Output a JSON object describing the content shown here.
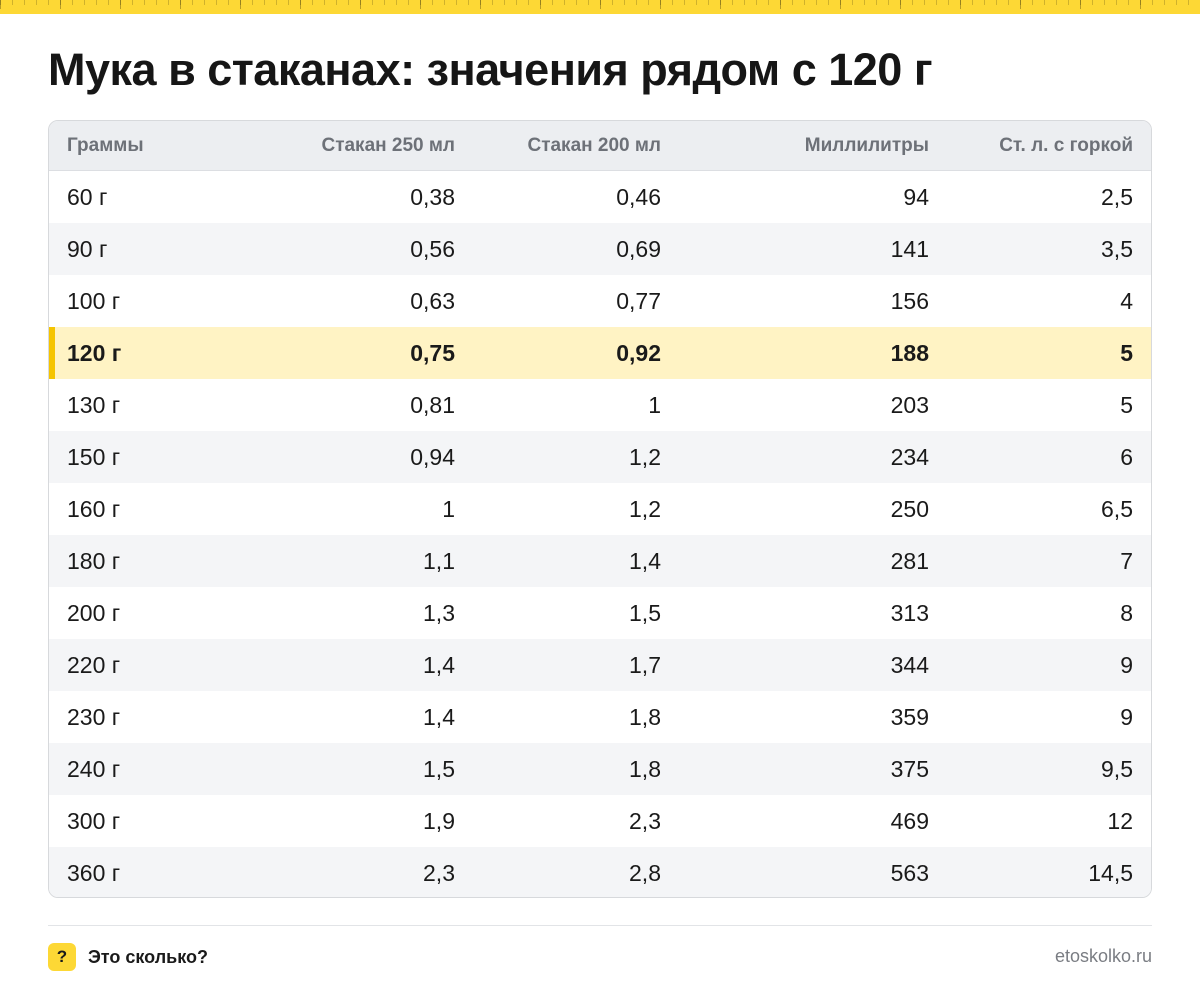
{
  "title": "Мука в стаканах: значения рядом с 120 г",
  "table": {
    "headers": [
      "Граммы",
      "Стакан 250 мл",
      "Стакан 200 мл",
      "Миллилитры",
      "Ст. л. с горкой"
    ],
    "rows": [
      [
        "60 г",
        "0,38",
        "0,46",
        "94",
        "2,5"
      ],
      [
        "90 г",
        "0,56",
        "0,69",
        "141",
        "3,5"
      ],
      [
        "100 г",
        "0,63",
        "0,77",
        "156",
        "4"
      ],
      [
        "120 г",
        "0,75",
        "0,92",
        "188",
        "5"
      ],
      [
        "130 г",
        "0,81",
        "1",
        "203",
        "5"
      ],
      [
        "150 г",
        "0,94",
        "1,2",
        "234",
        "6"
      ],
      [
        "160 г",
        "1",
        "1,2",
        "250",
        "6,5"
      ],
      [
        "180 г",
        "1,1",
        "1,4",
        "281",
        "7"
      ],
      [
        "200 г",
        "1,3",
        "1,5",
        "313",
        "8"
      ],
      [
        "220 г",
        "1,4",
        "1,7",
        "344",
        "9"
      ],
      [
        "230 г",
        "1,4",
        "1,8",
        "359",
        "9"
      ],
      [
        "240 г",
        "1,5",
        "1,8",
        "375",
        "9,5"
      ],
      [
        "300 г",
        "1,9",
        "2,3",
        "469",
        "12"
      ],
      [
        "360 г",
        "2,3",
        "2,8",
        "563",
        "14,5"
      ]
    ],
    "highlight_row": 3
  },
  "footer": {
    "badge": "?",
    "brand": "Это сколько?",
    "site": "etoskolko.ru"
  },
  "colors": {
    "accent": "#fdd835",
    "highlight_bg": "#fff3c4",
    "header_bg": "#eceef1",
    "alt_row_bg": "#f4f5f7"
  }
}
